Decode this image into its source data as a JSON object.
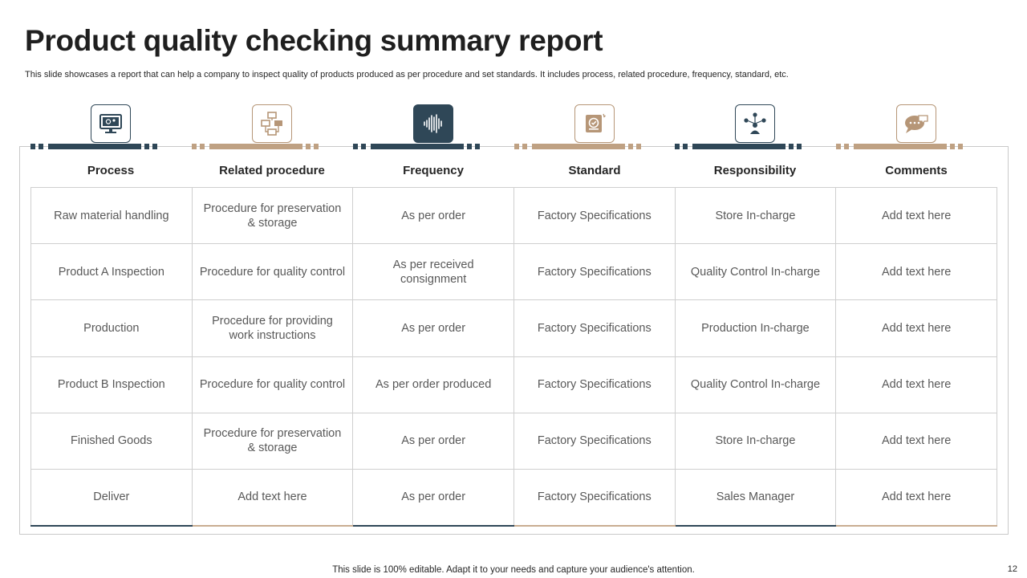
{
  "title": "Product quality checking summary report",
  "subtitle": "This slide showcases a report that can help a company to  inspect quality of products produced as per procedure and set standards. It includes process, related procedure, frequency, standard, etc.",
  "columns": [
    {
      "label": "Process",
      "icon": "monitor-settings-icon",
      "accent": "#2f4757"
    },
    {
      "label": "Related procedure",
      "icon": "flowchart-icon",
      "accent": "#bfa183"
    },
    {
      "label": "Frequency",
      "icon": "sound-wave-icon",
      "accent": "#2f4757"
    },
    {
      "label": "Standard",
      "icon": "quality-certificate-icon",
      "accent": "#bfa183"
    },
    {
      "label": "Responsibility",
      "icon": "team-network-icon",
      "accent": "#2f4757"
    },
    {
      "label": "Comments",
      "icon": "speech-bubble-icon",
      "accent": "#bfa183"
    }
  ],
  "rows": [
    [
      "Raw material handling",
      "Procedure for preservation & storage",
      "As per order",
      "Factory Specifications",
      "Store In-charge",
      "Add text here"
    ],
    [
      "Product A Inspection",
      "Procedure for quality control",
      "As per received consignment",
      "Factory Specifications",
      "Quality Control In-charge",
      "Add text here"
    ],
    [
      "Production",
      "Procedure for providing work instructions",
      "As per order",
      "Factory Specifications",
      "Production In-charge",
      "Add text here"
    ],
    [
      "Product B Inspection",
      "Procedure for quality control",
      "As per order produced",
      "Factory Specifications",
      "Quality Control In-charge",
      "Add text here"
    ],
    [
      "Finished Goods",
      "Procedure for preservation & storage",
      "As per order",
      "Factory Specifications",
      "Store In-charge",
      "Add text here"
    ],
    [
      "Deliver",
      "Add text here",
      "As per order",
      "Factory Specifications",
      "Sales Manager",
      "Add text here"
    ]
  ],
  "footer": "This slide is 100% editable. Adapt it to your needs and capture your audience's attention.",
  "page_number": "12"
}
